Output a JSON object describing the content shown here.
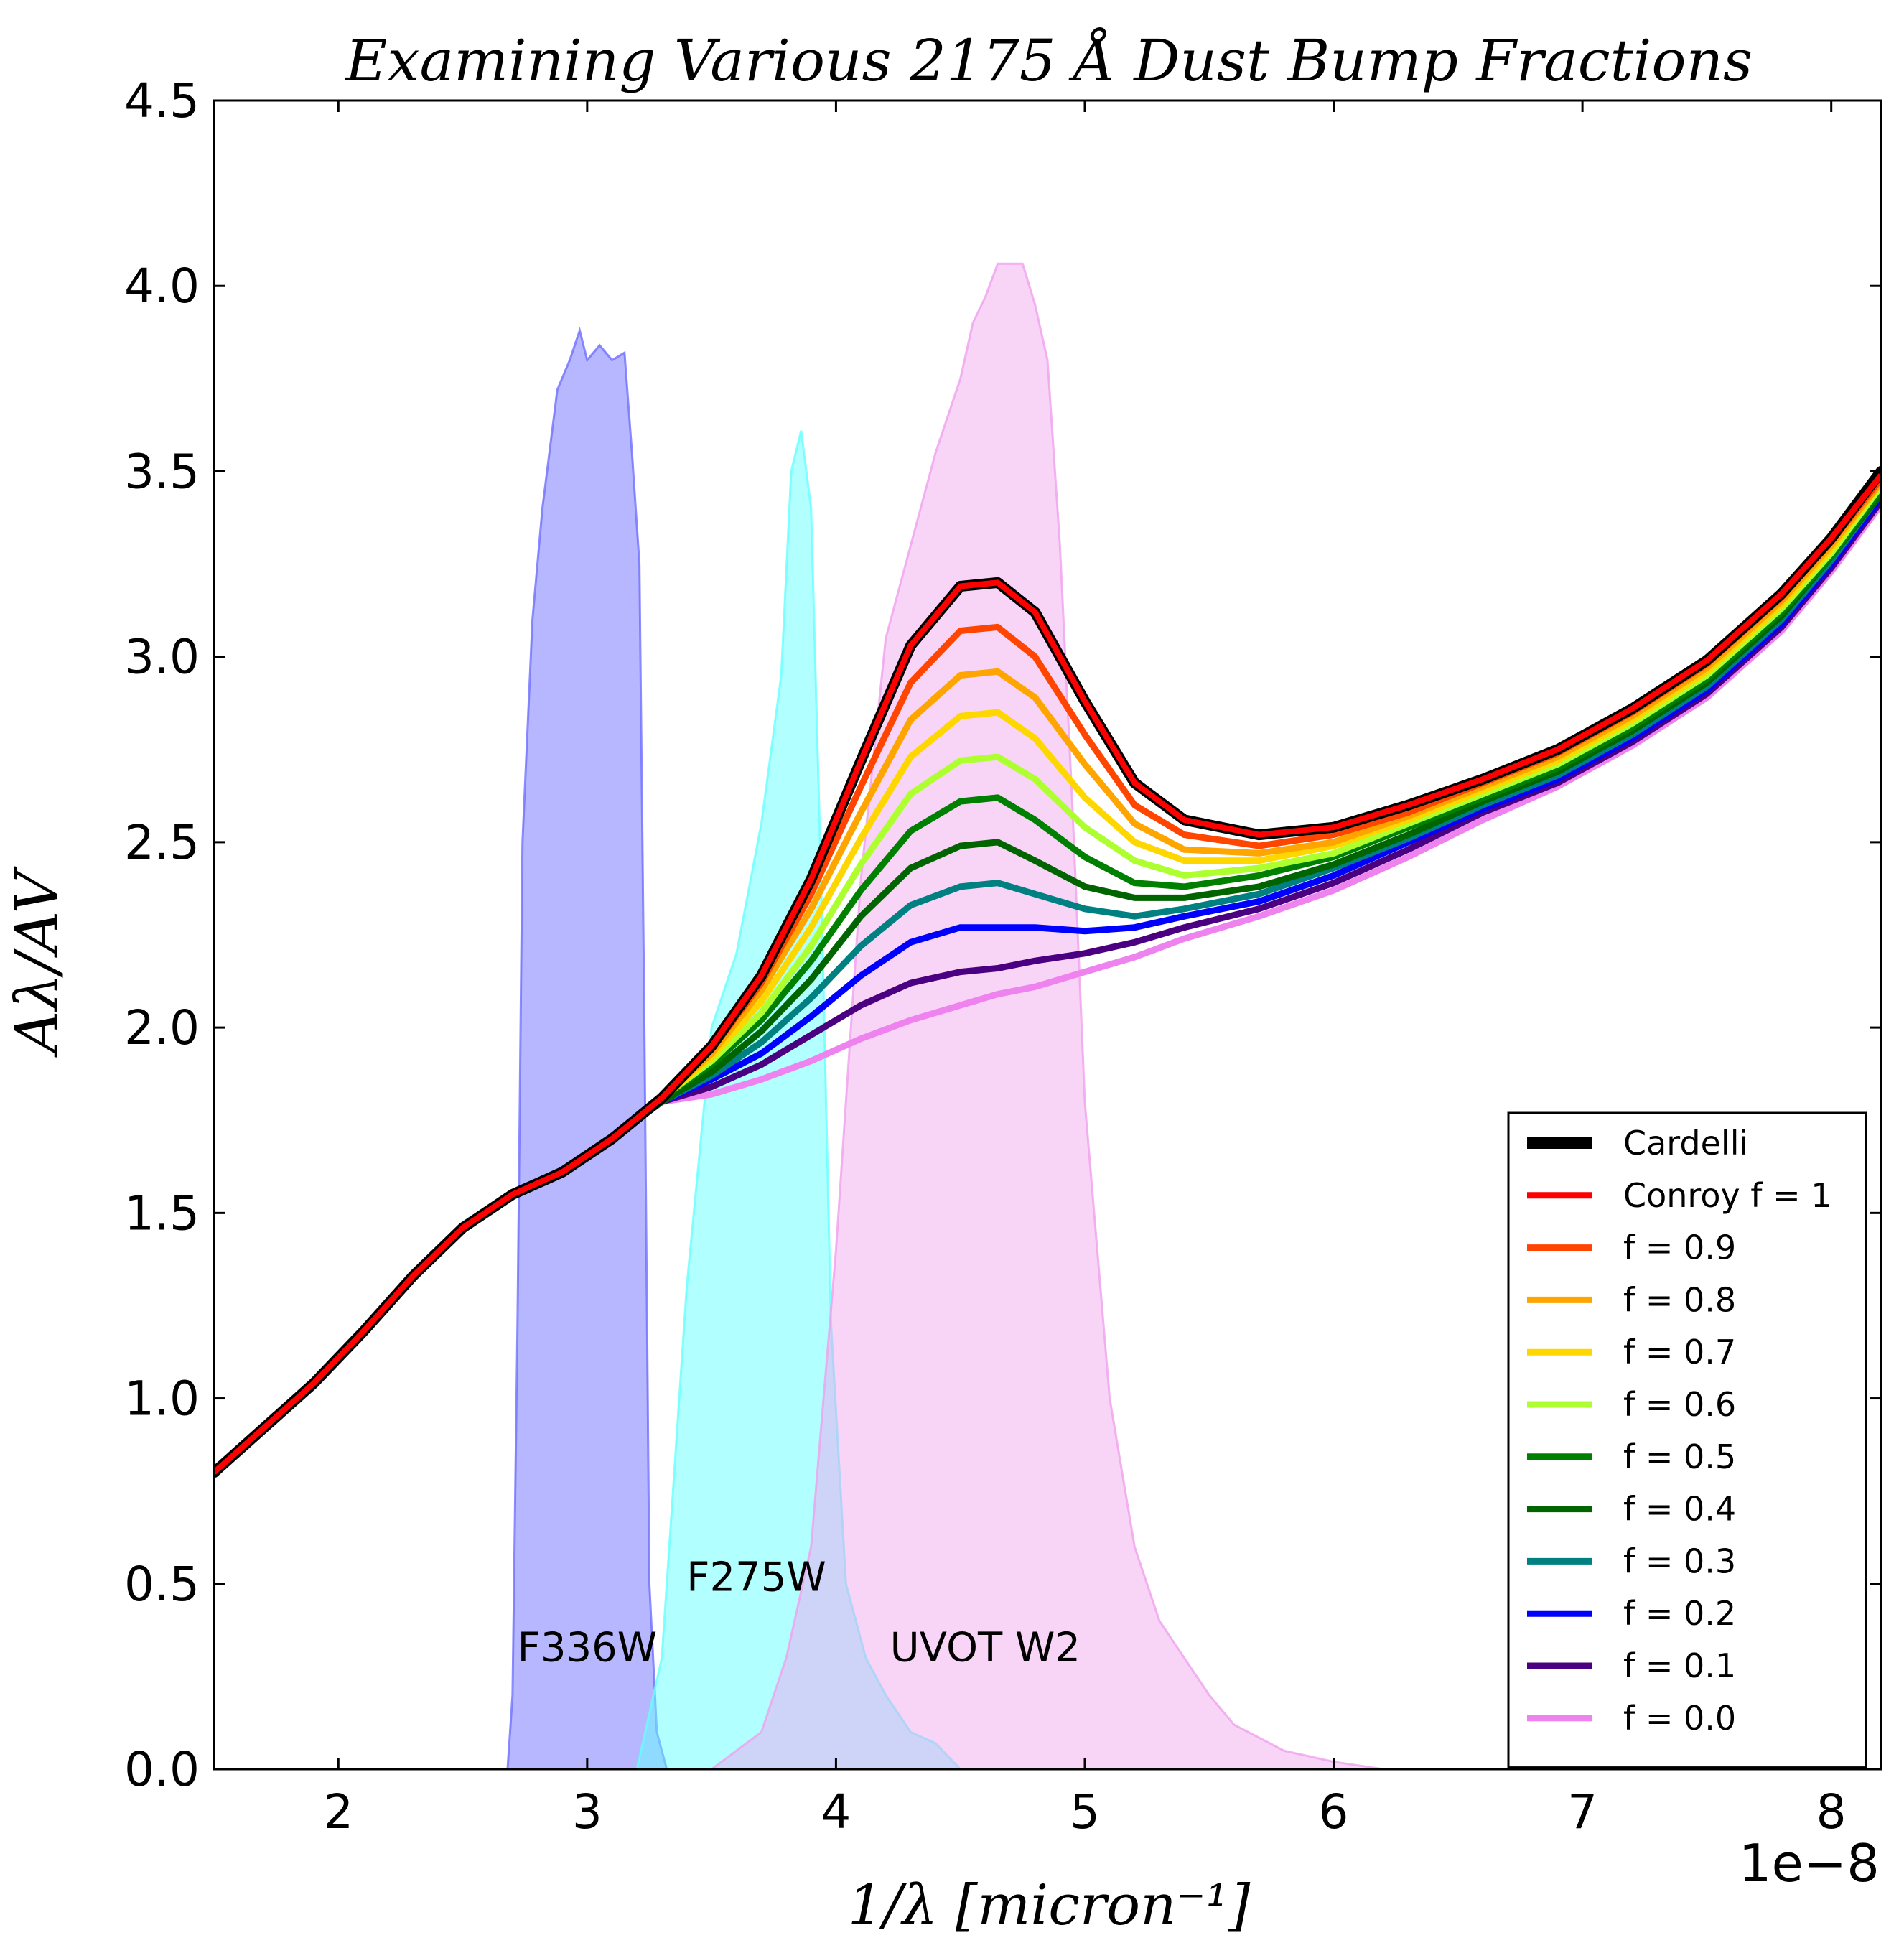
{
  "chart_data": {
    "type": "line",
    "title": "Examining Various 2175 Å Dust Bump Fractions",
    "xlabel": "1/λ [micron⁻¹]",
    "ylabel": "Aλ/AV",
    "x_offset_label": "1e−8",
    "xlim": [
      1.5,
      8.2
    ],
    "ylim": [
      0.0,
      4.5
    ],
    "x_ticks": [
      2,
      3,
      4,
      5,
      6,
      7,
      8
    ],
    "x_tick_labels": [
      "2",
      "3",
      "4",
      "5",
      "6",
      "7",
      "8"
    ],
    "y_ticks": [
      0.0,
      0.5,
      1.0,
      1.5,
      2.0,
      2.5,
      3.0,
      3.5,
      4.0,
      4.5
    ],
    "y_tick_labels": [
      "0.0",
      "0.5",
      "1.0",
      "1.5",
      "2.0",
      "2.5",
      "3.0",
      "3.5",
      "4.0",
      "4.5"
    ],
    "grid": false,
    "legend_position": "bottom-right",
    "x": [
      1.5,
      1.7,
      1.9,
      2.1,
      2.3,
      2.5,
      2.7,
      2.9,
      3.1,
      3.3,
      3.5,
      3.7,
      3.9,
      4.1,
      4.3,
      4.5,
      4.65,
      4.8,
      5.0,
      5.2,
      5.4,
      5.7,
      6.0,
      6.3,
      6.6,
      6.9,
      7.2,
      7.5,
      7.8,
      8.0,
      8.2
    ],
    "series": [
      {
        "name": "Cardelli",
        "color": "#000000",
        "values": [
          0.8,
          0.92,
          1.04,
          1.18,
          1.33,
          1.46,
          1.55,
          1.61,
          1.7,
          1.81,
          1.95,
          2.14,
          2.4,
          2.72,
          3.03,
          3.19,
          3.2,
          3.12,
          2.88,
          2.66,
          2.56,
          2.52,
          2.54,
          2.6,
          2.67,
          2.75,
          2.86,
          2.99,
          3.17,
          3.32,
          3.5
        ]
      },
      {
        "name": "Conroy f = 1",
        "color": "#ff0000",
        "values": [
          0.8,
          0.92,
          1.04,
          1.18,
          1.33,
          1.46,
          1.55,
          1.61,
          1.7,
          1.81,
          1.95,
          2.14,
          2.4,
          2.72,
          3.03,
          3.19,
          3.2,
          3.12,
          2.88,
          2.66,
          2.56,
          2.52,
          2.54,
          2.6,
          2.67,
          2.75,
          2.86,
          2.99,
          3.17,
          3.32,
          3.49
        ]
      },
      {
        "name": "f = 0.9",
        "color": "#ff4500",
        "values": [
          0.8,
          0.92,
          1.04,
          1.18,
          1.33,
          1.46,
          1.55,
          1.61,
          1.7,
          1.81,
          1.94,
          2.12,
          2.36,
          2.65,
          2.93,
          3.07,
          3.08,
          3.0,
          2.79,
          2.6,
          2.52,
          2.49,
          2.52,
          2.58,
          2.66,
          2.74,
          2.85,
          2.98,
          3.16,
          3.31,
          3.48
        ]
      },
      {
        "name": "f = 0.8",
        "color": "#ffa500",
        "values": [
          0.8,
          0.92,
          1.04,
          1.18,
          1.33,
          1.46,
          1.55,
          1.61,
          1.7,
          1.81,
          1.93,
          2.1,
          2.32,
          2.58,
          2.83,
          2.95,
          2.96,
          2.89,
          2.71,
          2.55,
          2.48,
          2.47,
          2.5,
          2.57,
          2.65,
          2.73,
          2.84,
          2.97,
          3.15,
          3.3,
          3.47
        ]
      },
      {
        "name": "f = 0.7",
        "color": "#ffd700",
        "values": [
          0.8,
          0.92,
          1.04,
          1.18,
          1.33,
          1.46,
          1.55,
          1.61,
          1.7,
          1.81,
          1.92,
          2.07,
          2.27,
          2.51,
          2.73,
          2.84,
          2.85,
          2.78,
          2.62,
          2.5,
          2.45,
          2.45,
          2.49,
          2.56,
          2.64,
          2.72,
          2.83,
          2.96,
          3.14,
          3.29,
          3.47
        ]
      },
      {
        "name": "f = 0.6",
        "color": "#adff2f",
        "values": [
          0.8,
          0.92,
          1.04,
          1.18,
          1.33,
          1.46,
          1.55,
          1.61,
          1.7,
          1.81,
          1.91,
          2.04,
          2.22,
          2.44,
          2.63,
          2.72,
          2.73,
          2.67,
          2.54,
          2.45,
          2.41,
          2.43,
          2.47,
          2.55,
          2.63,
          2.71,
          2.82,
          2.95,
          3.13,
          3.28,
          3.46
        ]
      },
      {
        "name": "f = 0.5",
        "color": "#008000",
        "values": [
          0.8,
          0.92,
          1.04,
          1.18,
          1.33,
          1.46,
          1.55,
          1.61,
          1.7,
          1.81,
          1.9,
          2.02,
          2.18,
          2.37,
          2.53,
          2.61,
          2.62,
          2.56,
          2.46,
          2.39,
          2.38,
          2.41,
          2.46,
          2.54,
          2.62,
          2.7,
          2.81,
          2.94,
          3.12,
          3.27,
          3.45
        ]
      },
      {
        "name": "f = 0.4",
        "color": "#006400",
        "values": [
          0.8,
          0.92,
          1.04,
          1.18,
          1.33,
          1.46,
          1.55,
          1.61,
          1.7,
          1.8,
          1.88,
          1.99,
          2.13,
          2.3,
          2.43,
          2.49,
          2.5,
          2.45,
          2.38,
          2.35,
          2.35,
          2.38,
          2.44,
          2.52,
          2.61,
          2.69,
          2.8,
          2.93,
          3.11,
          3.27,
          3.44
        ]
      },
      {
        "name": "f = 0.3",
        "color": "#008080",
        "values": [
          0.8,
          0.92,
          1.04,
          1.18,
          1.33,
          1.46,
          1.55,
          1.61,
          1.7,
          1.8,
          1.87,
          1.96,
          2.08,
          2.22,
          2.33,
          2.38,
          2.39,
          2.36,
          2.32,
          2.3,
          2.32,
          2.36,
          2.43,
          2.51,
          2.6,
          2.68,
          2.79,
          2.92,
          3.1,
          3.26,
          3.44
        ]
      },
      {
        "name": "f = 0.2",
        "color": "#0000ff",
        "values": [
          0.8,
          0.92,
          1.04,
          1.18,
          1.33,
          1.46,
          1.55,
          1.61,
          1.7,
          1.8,
          1.86,
          1.93,
          2.03,
          2.14,
          2.23,
          2.27,
          2.27,
          2.27,
          2.26,
          2.27,
          2.3,
          2.34,
          2.41,
          2.5,
          2.59,
          2.67,
          2.78,
          2.91,
          3.09,
          3.25,
          3.43
        ]
      },
      {
        "name": "f = 0.1",
        "color": "#4b0082",
        "values": [
          0.8,
          0.92,
          1.04,
          1.18,
          1.33,
          1.46,
          1.55,
          1.61,
          1.7,
          1.8,
          1.84,
          1.9,
          1.98,
          2.06,
          2.12,
          2.15,
          2.16,
          2.18,
          2.2,
          2.23,
          2.27,
          2.32,
          2.39,
          2.48,
          2.58,
          2.66,
          2.77,
          2.9,
          3.08,
          3.24,
          3.42
        ]
      },
      {
        "name": "f = 0.0",
        "color": "#ee82ee",
        "values": [
          0.8,
          0.92,
          1.04,
          1.18,
          1.33,
          1.46,
          1.55,
          1.61,
          1.7,
          1.8,
          1.82,
          1.86,
          1.91,
          1.97,
          2.02,
          2.06,
          2.09,
          2.11,
          2.15,
          2.19,
          2.24,
          2.3,
          2.37,
          2.46,
          2.56,
          2.65,
          2.76,
          2.89,
          3.07,
          3.23,
          3.41
        ]
      }
    ],
    "filters": [
      {
        "name": "F336W",
        "color": "#6f6fff",
        "opacity": 0.5,
        "label_at": [
          3.0,
          0.33
        ],
        "points": [
          [
            2.68,
            0.0
          ],
          [
            2.7,
            0.2
          ],
          [
            2.72,
            1.2
          ],
          [
            2.74,
            2.5
          ],
          [
            2.78,
            3.1
          ],
          [
            2.82,
            3.4
          ],
          [
            2.88,
            3.72
          ],
          [
            2.93,
            3.8
          ],
          [
            2.97,
            3.88
          ],
          [
            3.0,
            3.8
          ],
          [
            3.05,
            3.84
          ],
          [
            3.1,
            3.8
          ],
          [
            3.15,
            3.82
          ],
          [
            3.18,
            3.55
          ],
          [
            3.21,
            3.25
          ],
          [
            3.23,
            2.0
          ],
          [
            3.25,
            0.5
          ],
          [
            3.28,
            0.1
          ],
          [
            3.32,
            0.0
          ]
        ]
      },
      {
        "name": "F275W",
        "color": "#66ffff",
        "opacity": 0.5,
        "label_at": [
          3.68,
          0.52
        ],
        "points": [
          [
            3.2,
            0.0
          ],
          [
            3.3,
            0.3
          ],
          [
            3.4,
            1.3
          ],
          [
            3.5,
            2.0
          ],
          [
            3.6,
            2.2
          ],
          [
            3.7,
            2.55
          ],
          [
            3.78,
            2.95
          ],
          [
            3.82,
            3.5
          ],
          [
            3.86,
            3.61
          ],
          [
            3.9,
            3.4
          ],
          [
            3.94,
            2.4
          ],
          [
            3.98,
            1.2
          ],
          [
            4.04,
            0.5
          ],
          [
            4.12,
            0.3
          ],
          [
            4.2,
            0.2
          ],
          [
            4.3,
            0.1
          ],
          [
            4.4,
            0.07
          ],
          [
            4.5,
            0.0
          ]
        ]
      },
      {
        "name": "UVOT W2",
        "color": "#f0a0ee",
        "opacity": 0.45,
        "label_at": [
          4.6,
          0.33
        ],
        "points": [
          [
            3.5,
            0.0
          ],
          [
            3.7,
            0.1
          ],
          [
            3.8,
            0.3
          ],
          [
            3.9,
            0.6
          ],
          [
            4.0,
            1.4
          ],
          [
            4.1,
            2.4
          ],
          [
            4.2,
            3.05
          ],
          [
            4.3,
            3.3
          ],
          [
            4.4,
            3.55
          ],
          [
            4.5,
            3.75
          ],
          [
            4.55,
            3.9
          ],
          [
            4.6,
            3.97
          ],
          [
            4.65,
            4.06
          ],
          [
            4.75,
            4.06
          ],
          [
            4.8,
            3.95
          ],
          [
            4.85,
            3.8
          ],
          [
            4.9,
            3.3
          ],
          [
            4.95,
            2.6
          ],
          [
            5.0,
            1.8
          ],
          [
            5.1,
            1.0
          ],
          [
            5.2,
            0.6
          ],
          [
            5.3,
            0.4
          ],
          [
            5.4,
            0.3
          ],
          [
            5.5,
            0.2
          ],
          [
            5.6,
            0.12
          ],
          [
            5.8,
            0.05
          ],
          [
            6.0,
            0.02
          ],
          [
            6.2,
            0.0
          ]
        ]
      }
    ]
  }
}
